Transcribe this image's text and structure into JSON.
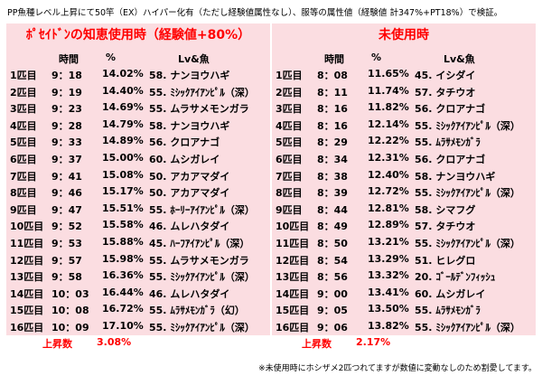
{
  "heading": "PP魚種レベル上昇にて50竿（EX）ハイパー化有（ただし経験値属性なし）、服等の属性値（経験値 計347%+PT18%）で検証。",
  "columns": {
    "time": "時間",
    "percent": "%",
    "lv_fish": "Lv&魚"
  },
  "left": {
    "title": "ﾎﾟｾｲﾄﾞﾝの知恵使用時（経験値+80%）",
    "rows": [
      {
        "idx": "1匹目",
        "time": "9：18",
        "pct": "14.02%",
        "fish": "58. ナンヨウハギ"
      },
      {
        "idx": "2匹目",
        "time": "9：19",
        "pct": "14.40%",
        "fish": "55. ﾐｼｯｸｱｲｱﾝﾋﾟﾙ（深）"
      },
      {
        "idx": "3匹目",
        "time": "9：23",
        "pct": "14.69%",
        "fish": "55. ムラサメモンガラ"
      },
      {
        "idx": "4匹目",
        "time": "9：28",
        "pct": "14.79%",
        "fish": "58. ナンヨウハギ"
      },
      {
        "idx": "5匹目",
        "time": "9：33",
        "pct": "14.89%",
        "fish": "56. クロアナゴ"
      },
      {
        "idx": "6匹目",
        "time": "9：37",
        "pct": "15.00%",
        "fish": "60. ムシガレイ"
      },
      {
        "idx": "7匹目",
        "time": "9：41",
        "pct": "15.08%",
        "fish": "50. アカアマダイ"
      },
      {
        "idx": "8匹目",
        "time": "9：46",
        "pct": "15.17%",
        "fish": "50. アカアマダイ"
      },
      {
        "idx": "9匹目",
        "time": "9：47",
        "pct": "15.51%",
        "fish": "55. ﾎｰﾘｰｱｲｱﾝﾋﾟﾙ（深）"
      },
      {
        "idx": "10匹目",
        "time": "9：52",
        "pct": "15.58%",
        "fish": "46. ムレハタダイ"
      },
      {
        "idx": "11匹目",
        "time": "9：53",
        "pct": "15.88%",
        "fish": "45. ﾊｰﾌｱｲｱﾝﾋﾟﾙ（深）"
      },
      {
        "idx": "12匹目",
        "time": "9：57",
        "pct": "15.98%",
        "fish": "55. ムラサメモンガラ"
      },
      {
        "idx": "13匹目",
        "time": "9：58",
        "pct": "16.36%",
        "fish": "55. ﾐｼｯｸｱｲｱﾝﾋﾟﾙ（深）"
      },
      {
        "idx": "14匹目",
        "time": "10：03",
        "pct": "16.44%",
        "fish": "46. ムレハタダイ"
      },
      {
        "idx": "15匹目",
        "time": "10：08",
        "pct": "16.72%",
        "fish": "55. ﾑﾗｻﾒﾓﾝｶﾞﾗ（幻）"
      },
      {
        "idx": "16匹目",
        "time": "10：09",
        "pct": "17.10%",
        "fish": "55. ﾐｼｯｸｱｲｱﾝﾋﾟﾙ（深）"
      }
    ],
    "summary_label": "上昇数",
    "summary_value": "3.08%"
  },
  "right": {
    "title": "未使用時",
    "rows": [
      {
        "idx": "1匹目",
        "time": "8：08",
        "pct": "11.65%",
        "fish": "45. イシダイ"
      },
      {
        "idx": "2匹目",
        "time": "8：11",
        "pct": "11.74%",
        "fish": "57. タチウオ"
      },
      {
        "idx": "3匹目",
        "time": "8：16",
        "pct": "11.82%",
        "fish": "56. クロアナゴ"
      },
      {
        "idx": "4匹目",
        "time": "8：16",
        "pct": "12.14%",
        "fish": "55. ﾐｼｯｸｱｲｱﾝﾋﾟﾙ（深）"
      },
      {
        "idx": "5匹目",
        "time": "8：29",
        "pct": "12.22%",
        "fish": "55. ﾑﾗｻﾒﾓﾝｶﾞﾗ"
      },
      {
        "idx": "6匹目",
        "time": "8：34",
        "pct": "12.31%",
        "fish": "56. クロアナゴ"
      },
      {
        "idx": "7匹目",
        "time": "8：38",
        "pct": "12.40%",
        "fish": "58. ナンヨウハギ"
      },
      {
        "idx": "8匹目",
        "time": "8：39",
        "pct": "12.72%",
        "fish": "55. ﾐｼｯｸｱｲｱﾝﾋﾟﾙ（深）"
      },
      {
        "idx": "9匹目",
        "time": "8：44",
        "pct": "12.81%",
        "fish": "58. シマフグ"
      },
      {
        "idx": "10匹目",
        "time": "8：49",
        "pct": "12.89%",
        "fish": "57. タチウオ"
      },
      {
        "idx": "11匹目",
        "time": "8：50",
        "pct": "13.21%",
        "fish": "55. ﾐｼｯｸｱｲｱﾝﾋﾟﾙ（深）"
      },
      {
        "idx": "12匹目",
        "time": "8：54",
        "pct": "13.29%",
        "fish": "51. ヒレグロ"
      },
      {
        "idx": "13匹目",
        "time": "8：56",
        "pct": "13.32%",
        "fish": "20. ｺﾞｰﾙﾃﾞﾝﾌｨｯｼｭ"
      },
      {
        "idx": "14匹目",
        "time": "9：00",
        "pct": "13.41%",
        "fish": "60. ムシガレイ"
      },
      {
        "idx": "15匹目",
        "time": "9：05",
        "pct": "13.50%",
        "fish": "55. ﾑﾗｻﾒﾓﾝｶﾞﾗ"
      },
      {
        "idx": "16匹目",
        "time": "9：06",
        "pct": "13.82%",
        "fish": "55. ﾐｼｯｸｱｲｱﾝﾋﾟﾙ（深）"
      }
    ],
    "summary_label": "上昇数",
    "summary_value": "2.17%"
  },
  "footnote": "※未使用時にホシザメ2匹つれてますが数値に変動なしのため割愛してます。"
}
